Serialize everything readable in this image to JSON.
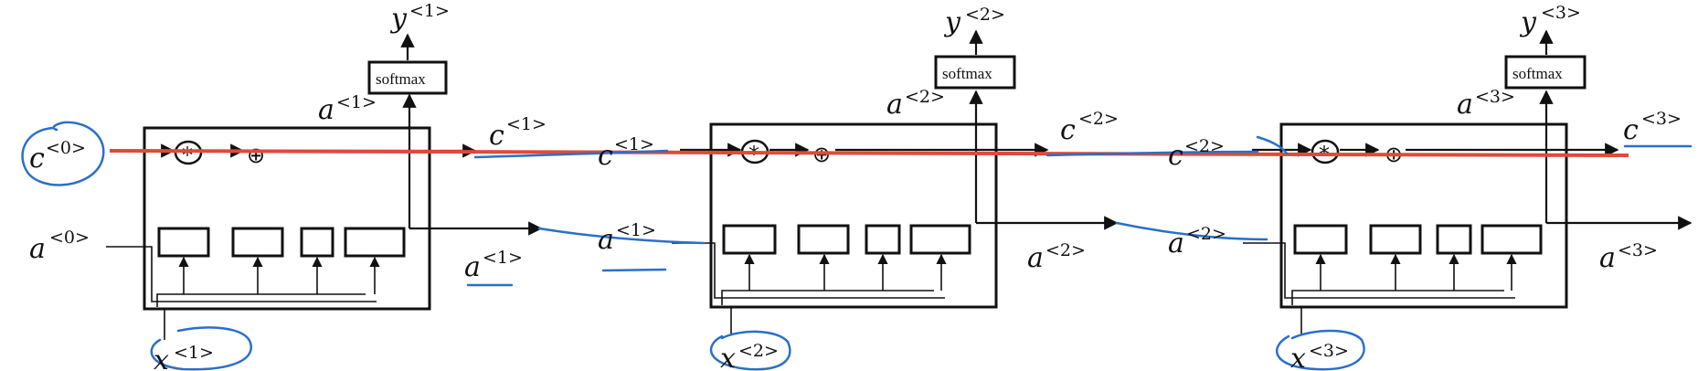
{
  "labels": {
    "c0": "c",
    "c0_sup": "<0>",
    "a0": "a",
    "a0_sup": "<0>",
    "cells": [
      {
        "y": "y",
        "y_sup": "<1>",
        "a_top": "a",
        "a_top_sup": "<1>",
        "c_out": "c",
        "c_out_sup": "<1>",
        "a_out": "a",
        "a_out_sup": "<1>",
        "x": "x",
        "x_sup": "<1>",
        "softmax": "softmax"
      },
      {
        "y": "y",
        "y_sup": "<2>",
        "a_top": "a",
        "a_top_sup": "<2>",
        "c_out": "c",
        "c_out_sup": "<2>",
        "a_out": "a",
        "a_out_sup": "<2>",
        "x": "x",
        "x_sup": "<2>",
        "softmax": "softmax"
      },
      {
        "y": "y",
        "y_sup": "<3>",
        "a_top": "a",
        "a_top_sup": "<3>",
        "c_out": "c",
        "c_out_sup": "<3>",
        "a_out": "a",
        "a_out_sup": "<3>",
        "x": "x",
        "x_sup": "<3>",
        "softmax": "softmax"
      }
    ],
    "carry": [
      {
        "c": "c",
        "c_sup": "<1>",
        "a": "a",
        "a_sup": "<1>"
      },
      {
        "c": "c",
        "c_sup": "<2>",
        "a": "a",
        "a_sup": "<2>"
      }
    ],
    "mult_op": "*",
    "add_op": "⊕"
  },
  "colors": {
    "ink_annotation": "#2a6fc9",
    "red_line": "#e04a3a",
    "lines": "#111111"
  }
}
